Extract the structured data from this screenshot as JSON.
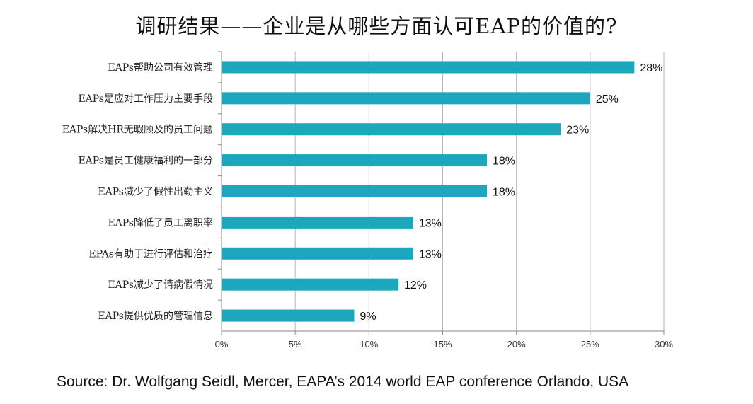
{
  "chart_data": {
    "type": "bar",
    "orientation": "horizontal",
    "title": "调研结果——企业是从哪些方面认可EAP的价值的?",
    "categories": [
      "EAPs帮助公司有效管理",
      "EAPs是应对工作压力主要手段",
      "EAPs解决HR无暇顾及的员工问题",
      "EAPs是员工健康福利的一部分",
      "EAPs减少了假性出勤主义",
      "EAPs降低了员工离职率",
      "EPAs有助于进行评估和治疗",
      "EAPs减少了请病假情况",
      "EAPs提供优质的管理信息"
    ],
    "values": [
      28,
      25,
      23,
      18,
      18,
      13,
      13,
      12,
      9
    ],
    "data_labels": [
      "28%",
      "25%",
      "23%",
      "18%",
      "18%",
      "13%",
      "13%",
      "12%",
      "9%"
    ],
    "xlim": [
      0,
      30
    ],
    "xticks": [
      0,
      5,
      10,
      15,
      20,
      25,
      30
    ],
    "xtick_labels": [
      "0%",
      "5%",
      "10%",
      "15%",
      "20%",
      "25%",
      "30%"
    ],
    "grid": "vertical",
    "legend": "none",
    "bar_color": "#1ca7bd",
    "grid_color": "#b5b5b5",
    "source": "Source: Dr. Wolfgang Seidl, Mercer, EAPA’s 2014 world EAP conference Orlando, USA"
  }
}
